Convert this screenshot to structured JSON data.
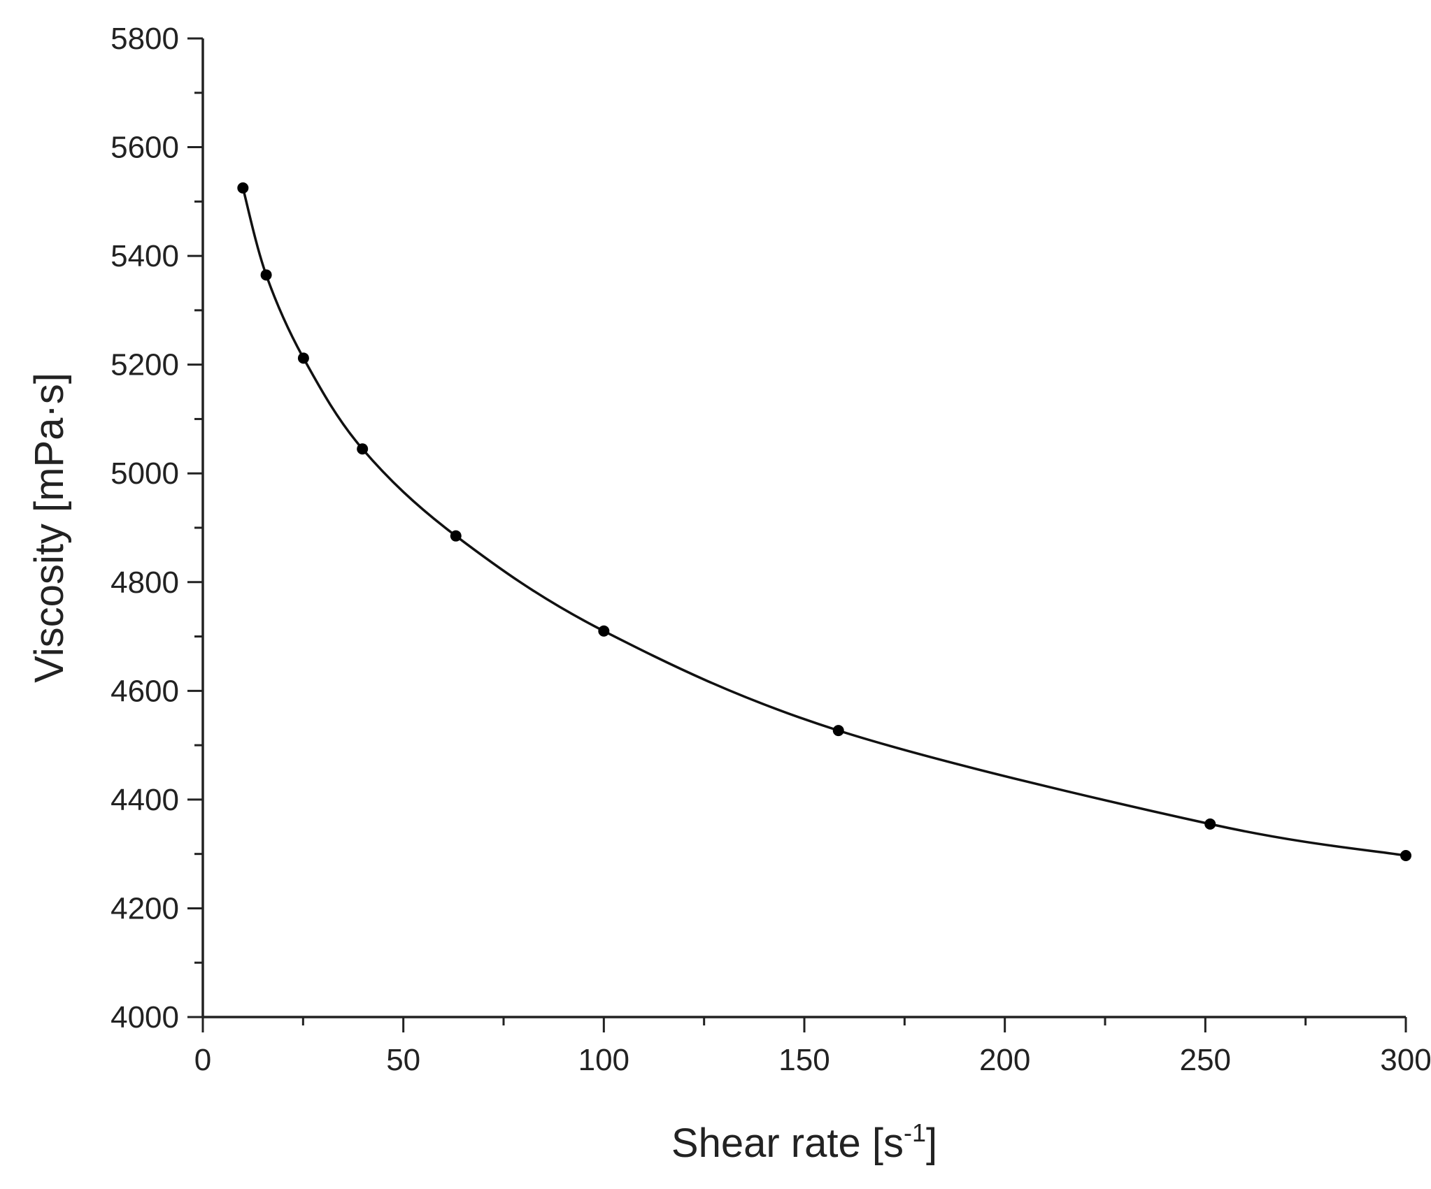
{
  "chart_data": {
    "type": "line",
    "title": "",
    "xlabel": "Shear rate [s",
    "xlabel_superscript": "-1",
    "xlabel_suffix": "]",
    "ylabel": "Viscosity [mPa·s]",
    "xlim": [
      0,
      300
    ],
    "ylim": [
      4000,
      5800
    ],
    "x_major_ticks": [
      0,
      50,
      100,
      150,
      200,
      250,
      300
    ],
    "y_major_ticks": [
      4000,
      4200,
      4400,
      4600,
      4800,
      5000,
      5200,
      5400,
      5600,
      5800
    ],
    "x_minor_step": 25,
    "y_minor_step": 100,
    "grid": false,
    "legend": "none",
    "series": [
      {
        "color": "#000000",
        "marker": "circle",
        "x": [
          10,
          15.8,
          25.1,
          39.8,
          63.1,
          100,
          158.5,
          251.2,
          300
        ],
        "y": [
          5525,
          5365,
          5212,
          5045,
          4885,
          4710,
          4527,
          4355,
          4297
        ]
      }
    ]
  }
}
